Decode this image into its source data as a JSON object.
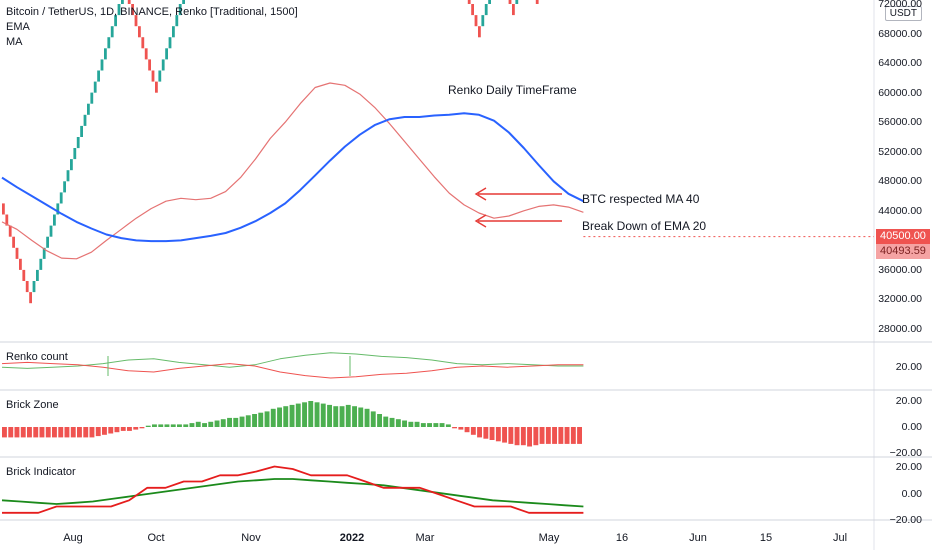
{
  "header": {
    "title": "Bitcoin / TetherUS, 1D, BINANCE, Renko [Traditional, 1500]",
    "ema_label": "EMA",
    "ma_label": "MA"
  },
  "price_axis": {
    "unit": "USDT",
    "ticks": [
      "72000.00",
      "68000.00",
      "64000.00",
      "60000.00",
      "56000.00",
      "52000.00",
      "48000.00",
      "44000.00",
      "36000.00",
      "32000.00",
      "28000.00"
    ],
    "last_price": "40500.00",
    "ma_value": "40493.59",
    "last_price_color": "#ef5350",
    "ma_value_color": "#f7a8a8"
  },
  "time_axis": {
    "labels": [
      "Aug",
      "Oct",
      "Nov",
      "2022",
      "Mar",
      "May",
      "16",
      "Jun",
      "15",
      "Jul"
    ]
  },
  "annotations": {
    "title": "Renko Daily TimeFrame",
    "ma_note": "BTC respected MA 40",
    "ema_note": "Break Down of EMA 20"
  },
  "panes": {
    "renko_count": {
      "title": "Renko count",
      "ticks": [
        "20.00"
      ]
    },
    "brick_zone": {
      "title": "Brick Zone",
      "ticks": [
        "20.00",
        "0.00",
        "−20.00"
      ]
    },
    "brick_indicator": {
      "title": "Brick Indicator",
      "ticks": [
        "20.00",
        "0.00",
        "−20.00"
      ]
    }
  },
  "colors": {
    "up": "#26a69a",
    "up_bright": "#4caf50",
    "down": "#ef5350",
    "ma40": "#2962ff",
    "ema20": "#e57373"
  },
  "chart_data": {
    "type": "renko",
    "brick_size": 1500,
    "bricks": [
      -1,
      -1,
      -1,
      -1,
      -1,
      -1,
      -1,
      -1,
      -1,
      1,
      1,
      1,
      1,
      1,
      1,
      1,
      1,
      1,
      1,
      1,
      1,
      1,
      1,
      1,
      1,
      1,
      1,
      1,
      1,
      1,
      1,
      1,
      1,
      1,
      1,
      1,
      1,
      -1,
      -1,
      -1,
      -1,
      -1,
      -1,
      -1,
      -1,
      -1,
      1,
      1,
      1,
      1,
      1,
      1,
      1,
      1,
      1,
      1,
      1,
      1,
      1,
      1,
      1,
      1,
      1,
      1,
      1,
      1,
      1,
      1,
      1,
      1,
      1,
      1,
      1,
      1,
      1,
      1,
      1,
      1,
      1,
      -1,
      -1,
      -1,
      -1,
      -1,
      -1,
      1,
      1,
      1,
      1,
      1,
      1,
      1,
      1,
      1,
      1,
      1,
      1,
      1,
      1,
      -1,
      -1,
      -1,
      -1,
      -1,
      -1,
      -1,
      -1,
      -1,
      -1,
      -1,
      -1,
      -1,
      -1,
      -1,
      -1,
      -1,
      -1,
      -1,
      -1,
      -1,
      -1,
      -1,
      -1,
      1,
      1,
      1,
      -1,
      -1,
      -1,
      -1,
      -1,
      -1,
      -1,
      -1,
      -1,
      -1,
      -1,
      -1,
      -1,
      -1,
      -1,
      1,
      1,
      1,
      1,
      1,
      1,
      -1,
      -1,
      -1,
      -1,
      1,
      1,
      1,
      1,
      -1,
      -1,
      -1,
      1,
      1,
      1,
      1,
      1,
      1,
      1,
      1,
      -1,
      -1,
      -1,
      -1,
      -1
    ],
    "first_brick_low": 36000,
    "ylim": [
      26000,
      72000
    ],
    "ma40": [
      48500,
      47200,
      46000,
      44800,
      43600,
      42500,
      41600,
      40800,
      40300,
      40000,
      39900,
      39900,
      40000,
      40300,
      40600,
      41000,
      41700,
      42600,
      43700,
      45000,
      46800,
      48800,
      50800,
      52700,
      54300,
      55600,
      56400,
      56700,
      56700,
      56900,
      57000,
      57200,
      57000,
      56200,
      54600,
      52500,
      50200,
      48000,
      46300,
      45300
    ],
    "ema20": [
      42500,
      41500,
      40000,
      38600,
      37600,
      37500,
      38400,
      40000,
      41500,
      43000,
      44300,
      45300,
      45700,
      45500,
      45700,
      46600,
      48500,
      51000,
      53800,
      56000,
      58500,
      60700,
      61300,
      61000,
      59800,
      58000,
      55800,
      53400,
      51000,
      48600,
      46400,
      44800,
      43700,
      43000,
      43300,
      44000,
      44600,
      44800,
      44500,
      43800
    ],
    "renko_count": {
      "green": [
        9,
        8,
        9,
        10,
        12,
        15,
        16,
        13,
        11,
        9,
        11,
        16,
        19,
        21,
        20,
        18,
        17,
        15,
        12,
        11,
        12,
        11,
        10,
        10
      ],
      "red": [
        12,
        13,
        12,
        11,
        9,
        6,
        5,
        8,
        10,
        12,
        10,
        5,
        2,
        0,
        1,
        3,
        4,
        6,
        9,
        10,
        9,
        10,
        11,
        11
      ]
    },
    "brick_zone": [
      -8,
      -8,
      -8,
      -8,
      -8,
      -8,
      -8,
      -8,
      -8,
      -8,
      -8,
      -8,
      -8,
      -8,
      -8,
      -7,
      -6,
      -5,
      -4,
      -3,
      -3,
      -2,
      -1,
      1,
      2,
      2,
      2,
      2,
      2,
      2,
      3,
      4,
      3,
      4,
      5,
      6,
      7,
      7,
      8,
      9,
      10,
      11,
      12,
      14,
      15,
      16,
      17,
      18,
      19,
      20,
      19,
      18,
      17,
      16,
      16,
      17,
      16,
      15,
      14,
      12,
      10,
      8,
      7,
      6,
      5,
      4,
      4,
      3,
      3,
      3,
      3,
      2,
      -1,
      -2,
      -4,
      -6,
      -8,
      -9,
      -10,
      -11,
      -12,
      -13,
      -14,
      -14,
      -15,
      -14,
      -13,
      -13,
      -13,
      -13,
      -13,
      -13,
      -13
    ],
    "brick_indicator": {
      "red": [
        -15,
        -15,
        -15,
        -10,
        -10,
        -10,
        -10,
        -5,
        5,
        5,
        10,
        10,
        15,
        15,
        18,
        22,
        20,
        15,
        15,
        15,
        10,
        5,
        5,
        5,
        0,
        -5,
        -10,
        -10,
        -10,
        -15,
        -15,
        -15,
        -15
      ],
      "green": [
        -5,
        -6,
        -7,
        -8,
        -7,
        -6,
        -4,
        -2,
        0,
        2,
        4,
        6,
        8,
        10,
        11,
        12,
        12,
        11,
        10,
        9,
        8,
        7,
        5,
        3,
        1,
        -1,
        -3,
        -5,
        -6,
        -7,
        -8,
        -9,
        -10
      ]
    }
  }
}
